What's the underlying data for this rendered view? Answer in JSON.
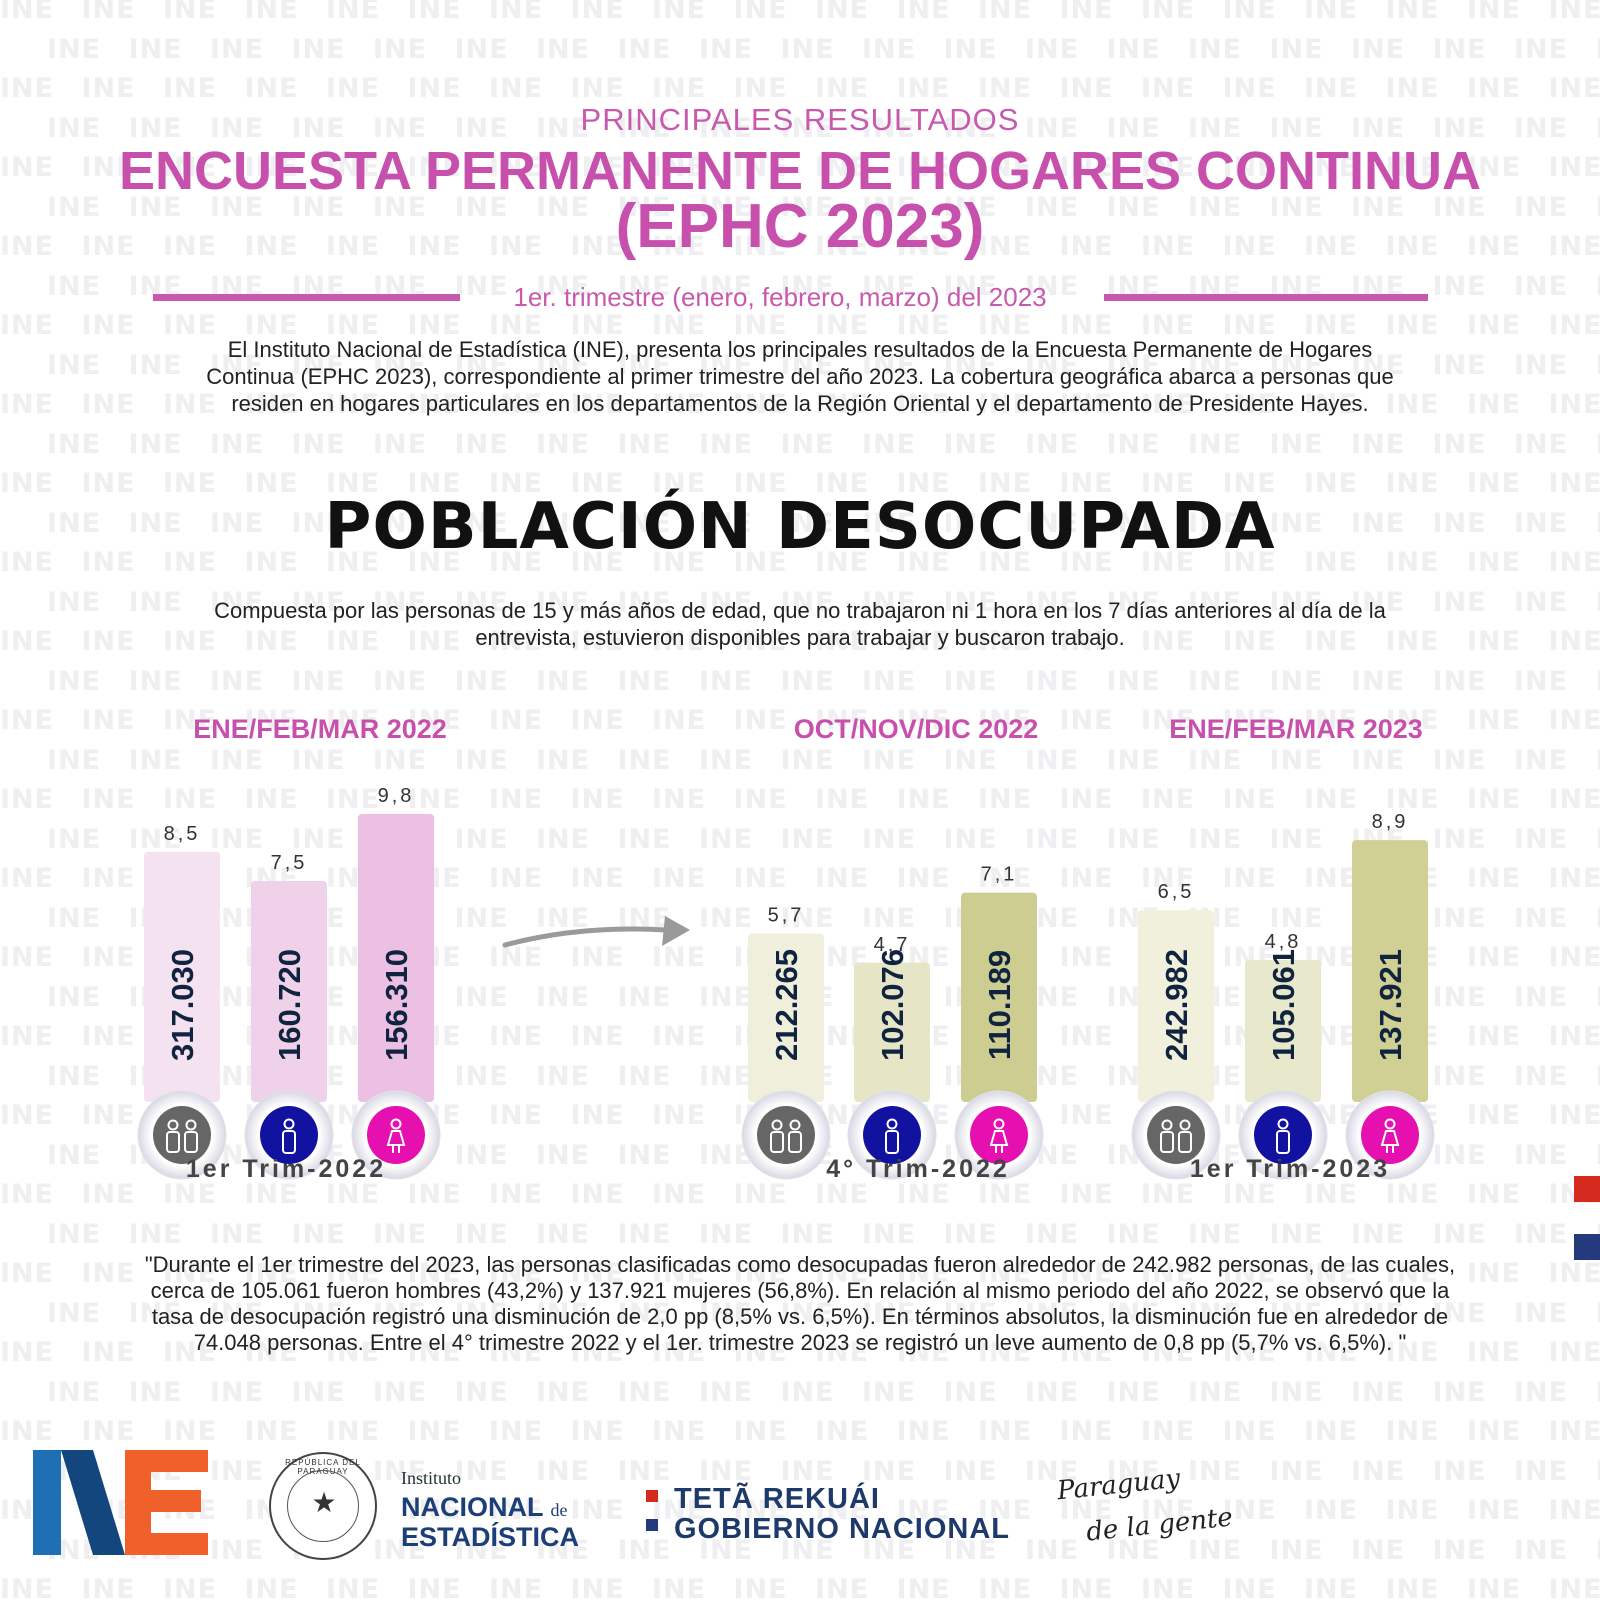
{
  "watermark_text": "INE",
  "header": {
    "subtitle": "PRINCIPALES RESULTADOS",
    "title_line1": "ENCUESTA PERMANENTE DE HOGARES CONTINUA",
    "title_line2": "(EPHC 2023)",
    "period": "1er. trimestre  (enero, febrero, marzo) del 2023"
  },
  "intro": {
    "text": "El Instituto Nacional de Estadística (INE), presenta los principales resultados de la Encuesta Permanente de Hogares Continua (EPHC 2023), correspondiente al primer trimestre del año 2023.  La cobertura geográfica abarca a personas que residen en hogares particulares en los departamentos de la Región Oriental y el departamento de Presidente Hayes."
  },
  "section": {
    "title": "POBLACIÓN DESOCUPADA",
    "description": "Compuesta por las personas de 15 y más años de edad,  que no trabajaron ni 1 hora en los 7 días anteriores al día de la entrevista, estuvieron disponibles para trabajar y buscaron trabajo."
  },
  "chart_data": {
    "type": "bar",
    "categories": [
      "Total",
      "Hombres",
      "Mujeres"
    ],
    "groups": [
      {
        "period_label": "ENE/FEB/MAR 2022",
        "trim_label": "1er Trim-2022",
        "rates": [
          8.5,
          7.5,
          9.8
        ],
        "rate_labels": [
          "8,5",
          "7,5",
          "9,8"
        ],
        "counts": [
          "317.030",
          "160.720",
          "156.310"
        ],
        "bar_colors": [
          "#f4e2f0",
          "#efd2e9",
          "#ebc0e2"
        ]
      },
      {
        "period_label": "OCT/NOV/DIC  2022",
        "trim_label": "4° Trim-2022",
        "rates": [
          5.7,
          4.7,
          7.1
        ],
        "rate_labels": [
          "5,7",
          "4,7",
          "7,1"
        ],
        "counts": [
          "212.265",
          "102.076",
          "110.189"
        ],
        "bar_colors": [
          "#efefdc",
          "#e6e6c7",
          "#cdcd91"
        ]
      },
      {
        "period_label": "ENE/FEB/MAR 2023",
        "trim_label": "1er Trim-2023",
        "rates": [
          6.5,
          4.8,
          8.9
        ],
        "rate_labels": [
          "6,5",
          "4,8",
          "8,9"
        ],
        "counts": [
          "242.982",
          "105.061",
          "137.921"
        ],
        "bar_colors": [
          "#f0f0dc",
          "#e8e8cc",
          "#d0d094"
        ]
      }
    ],
    "icon_colors": [
      "#666666",
      "#1212a0",
      "#e60fb0"
    ],
    "icon_names": [
      "people-icon",
      "man-icon",
      "woman-icon"
    ],
    "label_colors": {
      "period": "#c850ad",
      "count": "#10233f",
      "rate": "#333333",
      "trim": "#444444"
    }
  },
  "quote": {
    "text": "\"Durante el 1er trimestre del 2023, las personas clasificadas como desocupadas fueron alrededor de 242.982 personas, de las cuales, cerca de 105.061 fueron hombres (43,2%) y 137.921 mujeres (56,8%). En relación al mismo periodo del año 2022, se observó que la tasa de desocupación registró una disminución de 2,0 pp (8,5% vs. 6,5%). En términos absolutos, la disminución fue en alrededor de 74.048 personas. Entre el 4° trimestre 2022 y el 1er. trimestre 2023 se registró un leve aumento de 0,8 pp (5,7% vs. 6,5%). \""
  },
  "footer": {
    "institute_small": "Instituto",
    "institute_big1": "NACIONAL",
    "institute_de": "de",
    "institute_big2": "ESTADÍSTICA",
    "seal_text": "REPÚBLICA DEL PARAGUAY",
    "teta_line1": "TETÃ REKUÁI",
    "teta_line2": "GOBIERNO NACIONAL",
    "slogan_line1": "Paraguay",
    "slogan_line2": "de la gente",
    "colors": {
      "brand_blue": "#1f6fb5",
      "brand_orange": "#f0602a",
      "flag_red": "#d52b1e",
      "flag_blue": "#243a7c"
    }
  }
}
